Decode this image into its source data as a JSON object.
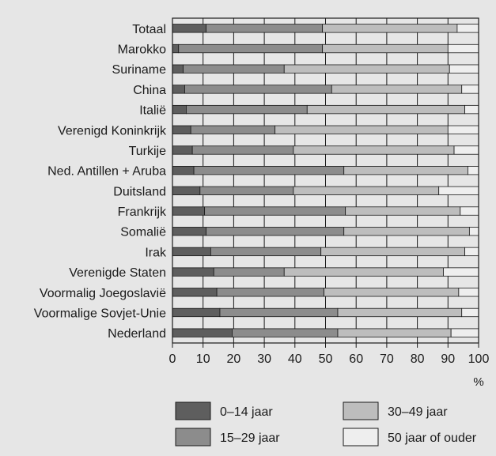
{
  "chart_data": {
    "type": "bar",
    "orientation": "horizontal",
    "stacked": true,
    "percent_stacked": true,
    "categories": [
      "Totaal",
      "Marokko",
      "Suriname",
      "China",
      "Italië",
      "Verenigd Koninkrijk",
      "Turkije",
      "Ned. Antillen + Aruba",
      "Duitsland",
      "Frankrijk",
      "Somalië",
      "Irak",
      "Verenigde Staten",
      "Voormalig Joegoslavië",
      "Voormalige Sovjet-Unie",
      "Nederland"
    ],
    "series": [
      {
        "name": "0–14 jaar",
        "color": "#5e5e5e",
        "values": [
          11,
          2,
          3.5,
          4,
          4.5,
          6,
          6.5,
          7,
          9,
          10.5,
          11,
          12.5,
          13.5,
          14.5,
          15.5,
          19.5
        ]
      },
      {
        "name": "15–29 jaar",
        "color": "#8c8c8c",
        "values": [
          38,
          47,
          33,
          48,
          39.5,
          27.5,
          33,
          49,
          30.5,
          46,
          45,
          36,
          23,
          35,
          38.5,
          34.5
        ]
      },
      {
        "name": "30–49 jaar",
        "color": "#bdbdbd",
        "values": [
          44,
          41,
          54,
          42.5,
          51.5,
          56.5,
          52.5,
          40.5,
          47.5,
          37.5,
          41,
          47,
          52,
          44,
          40.5,
          37
        ]
      },
      {
        "name": "50 jaar of ouder",
        "color": "#eeeeee",
        "values": [
          7,
          10,
          9.5,
          5.5,
          4.5,
          10,
          8,
          3.5,
          13,
          6,
          3,
          4.5,
          11.5,
          6.5,
          5.5,
          9
        ]
      }
    ],
    "xlim": [
      0,
      100
    ],
    "xticks": [
      "0",
      "10",
      "20",
      "30",
      "40",
      "50",
      "60",
      "70",
      "80",
      "90",
      "100"
    ],
    "xunit": "%",
    "grid": true,
    "legend_position": "bottom"
  }
}
